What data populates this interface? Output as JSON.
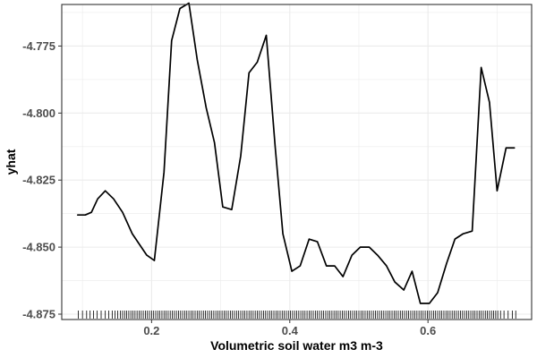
{
  "chart_data": {
    "type": "line",
    "title": "",
    "xlabel": "Volumetric soil water m3 m-3",
    "ylabel": "yhat",
    "xlim": [
      0.07,
      0.75
    ],
    "ylim": [
      -4.877,
      -4.7595
    ],
    "x_ticks": [
      0.2,
      0.4,
      0.6
    ],
    "x_tick_labels": [
      "0.2",
      "0.4",
      "0.6"
    ],
    "y_ticks": [
      -4.875,
      -4.85,
      -4.825,
      -4.8,
      -4.775
    ],
    "y_tick_labels": [
      "-4.875",
      "-4.850",
      "-4.825",
      "-4.800",
      "-4.775"
    ],
    "grid": true,
    "legend": "none",
    "colors": {
      "line": "#000000",
      "grid": "#ebebeb",
      "panel_border": "#333333",
      "tick_label": "#4d4d4d"
    },
    "series": [
      {
        "x": [
          0.093,
          0.104,
          0.113,
          0.122,
          0.133,
          0.145,
          0.158,
          0.172,
          0.193,
          0.204,
          0.218,
          0.229,
          0.241,
          0.254,
          0.266,
          0.279,
          0.291,
          0.303,
          0.316,
          0.329,
          0.341,
          0.353,
          0.366,
          0.379,
          0.39,
          0.403,
          0.415,
          0.428,
          0.44,
          0.453,
          0.465,
          0.477,
          0.49,
          0.502,
          0.515,
          0.527,
          0.54,
          0.552,
          0.565,
          0.577,
          0.589,
          0.602,
          0.614,
          0.627,
          0.639,
          0.651,
          0.664,
          0.677,
          0.689,
          0.7,
          0.713,
          0.725
        ],
        "y": [
          -4.838,
          -4.838,
          -4.837,
          -4.832,
          -4.829,
          -4.832,
          -4.837,
          -4.845,
          -4.853,
          -4.855,
          -4.822,
          -4.773,
          -4.761,
          -4.759,
          -4.78,
          -4.798,
          -4.811,
          -4.835,
          -4.836,
          -4.816,
          -4.785,
          -4.781,
          -4.771,
          -4.813,
          -4.845,
          -4.859,
          -4.857,
          -4.847,
          -4.848,
          -4.857,
          -4.857,
          -4.861,
          -4.853,
          -4.85,
          -4.85,
          -4.853,
          -4.857,
          -4.863,
          -4.866,
          -4.859,
          -4.871,
          -4.871,
          -4.867,
          -4.856,
          -4.847,
          -4.845,
          -4.844,
          -4.783,
          -4.796,
          -4.829,
          -4.813,
          -4.813
        ]
      }
    ],
    "rug": [
      0.094,
      0.1,
      0.106,
      0.111,
      0.116,
      0.121,
      0.127,
      0.133,
      0.138,
      0.143,
      0.147,
      0.151,
      0.155,
      0.158,
      0.161,
      0.164,
      0.167,
      0.17,
      0.173,
      0.176,
      0.179,
      0.182,
      0.185,
      0.188,
      0.191,
      0.194,
      0.197,
      0.2,
      0.203,
      0.206,
      0.209,
      0.212,
      0.215,
      0.218,
      0.221,
      0.224,
      0.227,
      0.23,
      0.233,
      0.236,
      0.239,
      0.242,
      0.245,
      0.248,
      0.251,
      0.254,
      0.257,
      0.26,
      0.263,
      0.266,
      0.269,
      0.272,
      0.275,
      0.278,
      0.281,
      0.284,
      0.287,
      0.29,
      0.293,
      0.296,
      0.299,
      0.302,
      0.305,
      0.308,
      0.311,
      0.314,
      0.317,
      0.32,
      0.323,
      0.326,
      0.329,
      0.332,
      0.335,
      0.338,
      0.341,
      0.344,
      0.347,
      0.35,
      0.353,
      0.356,
      0.359,
      0.362,
      0.365,
      0.368,
      0.371,
      0.374,
      0.377,
      0.38,
      0.383,
      0.386,
      0.389,
      0.392,
      0.395,
      0.398,
      0.401,
      0.404,
      0.407,
      0.41,
      0.413,
      0.416,
      0.419,
      0.422,
      0.425,
      0.428,
      0.431,
      0.434,
      0.437,
      0.44,
      0.443,
      0.446,
      0.449,
      0.452,
      0.455,
      0.458,
      0.461,
      0.464,
      0.467,
      0.47,
      0.473,
      0.476,
      0.479,
      0.482,
      0.485,
      0.488,
      0.491,
      0.494,
      0.497,
      0.5,
      0.503,
      0.506,
      0.509,
      0.512,
      0.515,
      0.518,
      0.521,
      0.524,
      0.527,
      0.53,
      0.533,
      0.536,
      0.539,
      0.542,
      0.545,
      0.548,
      0.551,
      0.554,
      0.557,
      0.56,
      0.563,
      0.566,
      0.569,
      0.572,
      0.575,
      0.578,
      0.581,
      0.584,
      0.587,
      0.59,
      0.593,
      0.596,
      0.599,
      0.602,
      0.605,
      0.608,
      0.611,
      0.614,
      0.617,
      0.62,
      0.623,
      0.626,
      0.629,
      0.632,
      0.635,
      0.638,
      0.641,
      0.644,
      0.647,
      0.65,
      0.653,
      0.656,
      0.659,
      0.662,
      0.665,
      0.668,
      0.671,
      0.674,
      0.677,
      0.68,
      0.683,
      0.686,
      0.689,
      0.692,
      0.695,
      0.698,
      0.701,
      0.705,
      0.71,
      0.716,
      0.722,
      0.727
    ]
  }
}
